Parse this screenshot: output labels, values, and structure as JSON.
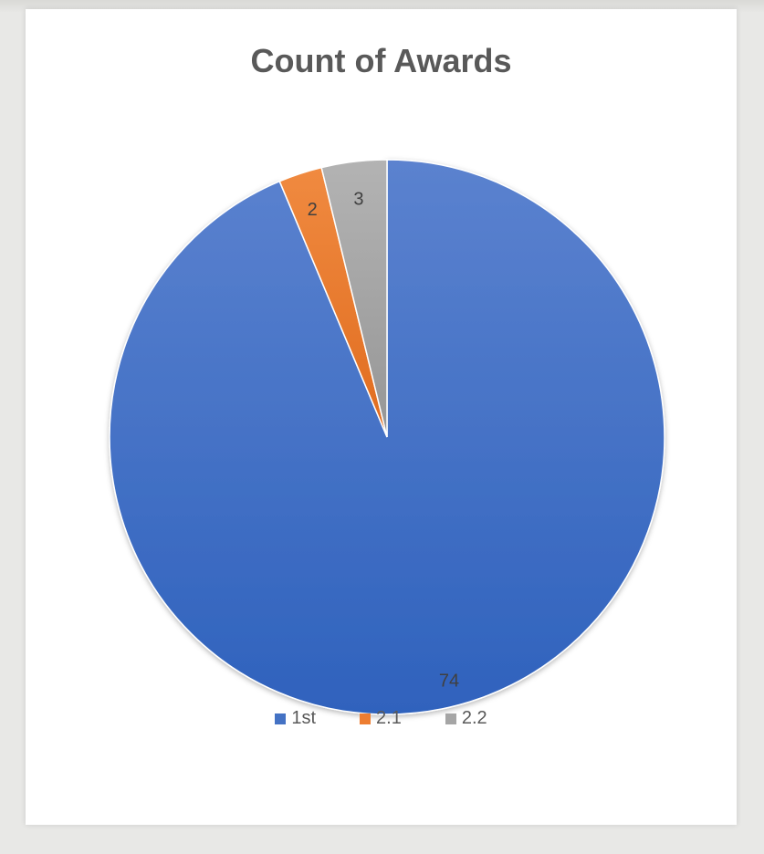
{
  "chart_data": {
    "type": "pie",
    "title": "Count of Awards",
    "categories": [
      "1st",
      "2.1",
      "2.2"
    ],
    "values": [
      74,
      2,
      3
    ],
    "colors": [
      "#4472C4",
      "#ED7D31",
      "#A5A5A5"
    ],
    "data_labels": [
      "74",
      "2",
      "3"
    ],
    "legend_position": "bottom",
    "slice_order": "counterclockwise from 12 o'clock"
  }
}
